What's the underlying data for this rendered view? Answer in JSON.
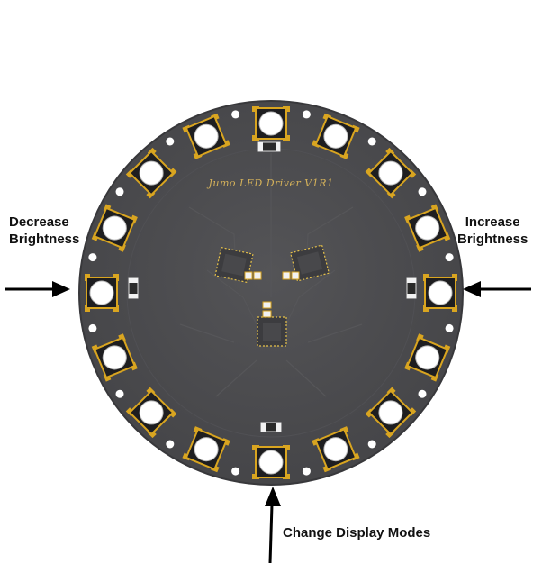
{
  "board": {
    "silkscreen_text": "Jumo LED Driver V1R1",
    "pcb_color": "#4a4a4d",
    "pcb_edge_color": "#3a3a3d",
    "pad_color": "#d9a520",
    "led_body_color": "#1e1e20",
    "led_lens_color": "#ffffff",
    "led_count": 16
  },
  "annotations": {
    "decrease": {
      "line1": "Decrease",
      "line2": "Brightness"
    },
    "increase": {
      "line1": "Increase",
      "line2": "Brightness"
    },
    "mode": {
      "text": "Change Display Modes"
    }
  }
}
